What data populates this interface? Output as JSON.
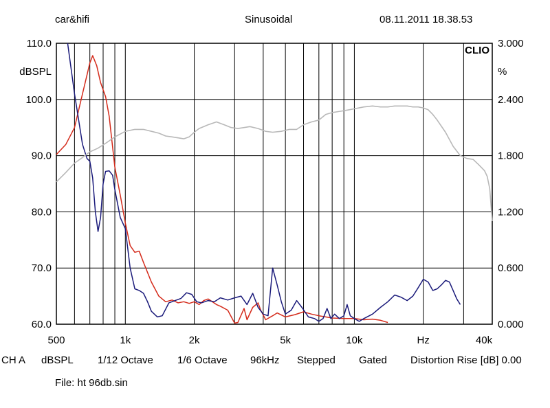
{
  "header": {
    "left": "car&hifi",
    "center": "Sinusoidal",
    "right": "08.11.2011 18.38.53"
  },
  "footer": {
    "ch": "CH A",
    "unit": "dBSPL",
    "smoothing": "1/12 Octave",
    "resolution": "1/6 Octave",
    "rate": "96kHz",
    "mode": "Stepped",
    "gating": "Gated",
    "distortion": "Distortion Rise [dB] 0.00",
    "file": "File: ht 96db.sin"
  },
  "chart_data": {
    "type": "line",
    "brand": "CLIO",
    "xscale": "log",
    "xlim": [
      500,
      40000
    ],
    "ylim": [
      60,
      110
    ],
    "y2lim": [
      0,
      3
    ],
    "ylabel": "dBSPL",
    "y2label": "%",
    "x_tick_labels": [
      {
        "label": "500",
        "x": 500
      },
      {
        "label": "1k",
        "x": 1000
      },
      {
        "label": "2k",
        "x": 2000
      },
      {
        "label": "5k",
        "x": 5000
      },
      {
        "label": "10k",
        "x": 10000
      },
      {
        "label": "Hz",
        "x": 20000
      },
      {
        "label": "40k",
        "x": 40000
      }
    ],
    "y_tick_labels": [
      "110.0",
      "100.0",
      "90.0",
      "80.0",
      "70.0",
      "60.0"
    ],
    "y2_tick_labels": [
      "3.000",
      "2.400",
      "1.800",
      "1.200",
      "0.600",
      "0.000"
    ],
    "colors": {
      "red": "#d42a1a",
      "blue": "#1a1a7a",
      "gray": "#b8b8b8",
      "grid": "#000000"
    },
    "series": [
      {
        "color": "red",
        "axis": "left",
        "points": [
          [
            500,
            90.2
          ],
          [
            550,
            92
          ],
          [
            600,
            95
          ],
          [
            650,
            101
          ],
          [
            700,
            106.5
          ],
          [
            720,
            107.8
          ],
          [
            750,
            106
          ],
          [
            780,
            103
          ],
          [
            820,
            100.5
          ],
          [
            850,
            97
          ],
          [
            900,
            88
          ],
          [
            950,
            83
          ],
          [
            1000,
            78
          ],
          [
            1050,
            74
          ],
          [
            1100,
            72.8
          ],
          [
            1150,
            73
          ],
          [
            1200,
            71
          ],
          [
            1300,
            67.5
          ],
          [
            1400,
            65
          ],
          [
            1500,
            64
          ],
          [
            1600,
            64.3
          ],
          [
            1700,
            63.8
          ],
          [
            1800,
            64
          ],
          [
            1900,
            63.7
          ],
          [
            2000,
            64
          ],
          [
            2100,
            63.5
          ],
          [
            2200,
            64.2
          ],
          [
            2300,
            64.5
          ],
          [
            2500,
            63.5
          ],
          [
            2600,
            63.2
          ],
          [
            2800,
            62.5
          ],
          [
            3000,
            60.2
          ],
          [
            3100,
            60.3
          ],
          [
            3300,
            62.8
          ],
          [
            3400,
            60.8
          ],
          [
            3600,
            63
          ],
          [
            3800,
            63.8
          ],
          [
            3900,
            62.5
          ],
          [
            4100,
            60.8
          ],
          [
            4400,
            61.5
          ],
          [
            4600,
            62
          ],
          [
            5000,
            61.3
          ],
          [
            5500,
            61.7
          ],
          [
            6000,
            62.2
          ],
          [
            6500,
            61.8
          ],
          [
            7000,
            61.5
          ],
          [
            7500,
            61.3
          ],
          [
            8000,
            61.1
          ],
          [
            9000,
            61
          ],
          [
            10000,
            61
          ],
          [
            11000,
            60.8
          ],
          [
            12000,
            60.9
          ],
          [
            13000,
            60.7
          ],
          [
            14000,
            60.3
          ]
        ]
      },
      {
        "color": "blue",
        "axis": "left",
        "points": [
          [
            560,
            110
          ],
          [
            600,
            101
          ],
          [
            650,
            92
          ],
          [
            680,
            89.5
          ],
          [
            700,
            89
          ],
          [
            720,
            86
          ],
          [
            740,
            80
          ],
          [
            760,
            76.5
          ],
          [
            780,
            79
          ],
          [
            800,
            85
          ],
          [
            820,
            87.2
          ],
          [
            850,
            87.3
          ],
          [
            880,
            86.5
          ],
          [
            900,
            84
          ],
          [
            950,
            79
          ],
          [
            1000,
            77
          ],
          [
            1050,
            70
          ],
          [
            1100,
            66.3
          ],
          [
            1150,
            66
          ],
          [
            1200,
            65.5
          ],
          [
            1250,
            64
          ],
          [
            1300,
            62.3
          ],
          [
            1380,
            61.3
          ],
          [
            1450,
            61.5
          ],
          [
            1550,
            63.8
          ],
          [
            1650,
            64.2
          ],
          [
            1750,
            64.6
          ],
          [
            1850,
            65.6
          ],
          [
            1950,
            65.3
          ],
          [
            2050,
            64
          ],
          [
            2150,
            63.8
          ],
          [
            2300,
            64.2
          ],
          [
            2450,
            64
          ],
          [
            2600,
            64.7
          ],
          [
            2800,
            64.3
          ],
          [
            3000,
            64.7
          ],
          [
            3200,
            65
          ],
          [
            3400,
            63.5
          ],
          [
            3600,
            65.5
          ],
          [
            3800,
            63
          ],
          [
            4000,
            61.8
          ],
          [
            4200,
            61.5
          ],
          [
            4400,
            70
          ],
          [
            4600,
            67
          ],
          [
            4800,
            64
          ],
          [
            5000,
            61.8
          ],
          [
            5300,
            62.5
          ],
          [
            5600,
            64.2
          ],
          [
            5900,
            63
          ],
          [
            6300,
            61.3
          ],
          [
            6700,
            61
          ],
          [
            7000,
            60.5
          ],
          [
            7300,
            61
          ],
          [
            7600,
            62.8
          ],
          [
            7900,
            61
          ],
          [
            8200,
            61.8
          ],
          [
            8600,
            61
          ],
          [
            9000,
            61.5
          ],
          [
            9300,
            63.5
          ],
          [
            9600,
            61.5
          ],
          [
            10000,
            61
          ],
          [
            10500,
            60.5
          ],
          [
            11000,
            61
          ],
          [
            12000,
            61.8
          ],
          [
            13000,
            63
          ],
          [
            14000,
            64
          ],
          [
            15000,
            65.2
          ],
          [
            16000,
            64.8
          ],
          [
            17000,
            64.2
          ],
          [
            18000,
            65
          ],
          [
            19000,
            66.5
          ],
          [
            20000,
            68
          ],
          [
            21000,
            67.5
          ],
          [
            22000,
            66
          ],
          [
            23000,
            66.3
          ],
          [
            24000,
            67
          ],
          [
            25000,
            67.8
          ],
          [
            26000,
            67.5
          ],
          [
            27000,
            66
          ],
          [
            28000,
            64.5
          ],
          [
            29000,
            63.5
          ]
        ]
      },
      {
        "color": "gray",
        "axis": "right",
        "points": [
          [
            500,
            1.52
          ],
          [
            550,
            1.62
          ],
          [
            600,
            1.72
          ],
          [
            650,
            1.78
          ],
          [
            700,
            1.84
          ],
          [
            760,
            1.88
          ],
          [
            830,
            1.94
          ],
          [
            900,
            2.0
          ],
          [
            1000,
            2.06
          ],
          [
            1100,
            2.08
          ],
          [
            1200,
            2.08
          ],
          [
            1300,
            2.06
          ],
          [
            1400,
            2.04
          ],
          [
            1500,
            2.01
          ],
          [
            1600,
            2.0
          ],
          [
            1700,
            1.99
          ],
          [
            1800,
            1.98
          ],
          [
            1900,
            2.0
          ],
          [
            2000,
            2.05
          ],
          [
            2100,
            2.09
          ],
          [
            2300,
            2.13
          ],
          [
            2500,
            2.16
          ],
          [
            2700,
            2.13
          ],
          [
            2900,
            2.1
          ],
          [
            3100,
            2.09
          ],
          [
            3300,
            2.1
          ],
          [
            3500,
            2.11
          ],
          [
            3800,
            2.09
          ],
          [
            4100,
            2.06
          ],
          [
            4400,
            2.05
          ],
          [
            4800,
            2.06
          ],
          [
            5200,
            2.08
          ],
          [
            5600,
            2.08
          ],
          [
            6000,
            2.13
          ],
          [
            6500,
            2.16
          ],
          [
            7000,
            2.18
          ],
          [
            7500,
            2.24
          ],
          [
            8000,
            2.26
          ],
          [
            8500,
            2.27
          ],
          [
            9000,
            2.28
          ],
          [
            9500,
            2.29
          ],
          [
            10000,
            2.3
          ],
          [
            11000,
            2.32
          ],
          [
            12000,
            2.33
          ],
          [
            13000,
            2.32
          ],
          [
            14000,
            2.32
          ],
          [
            15000,
            2.33
          ],
          [
            16000,
            2.33
          ],
          [
            17000,
            2.33
          ],
          [
            18000,
            2.32
          ],
          [
            19000,
            2.32
          ],
          [
            20000,
            2.31
          ],
          [
            21000,
            2.29
          ],
          [
            22000,
            2.24
          ],
          [
            23000,
            2.18
          ],
          [
            25000,
            2.05
          ],
          [
            27000,
            1.9
          ],
          [
            29000,
            1.8
          ],
          [
            31000,
            1.77
          ],
          [
            33000,
            1.76
          ],
          [
            35000,
            1.7
          ],
          [
            37000,
            1.64
          ],
          [
            38000,
            1.58
          ],
          [
            39000,
            1.45
          ],
          [
            40000,
            1.1
          ]
        ]
      }
    ]
  }
}
